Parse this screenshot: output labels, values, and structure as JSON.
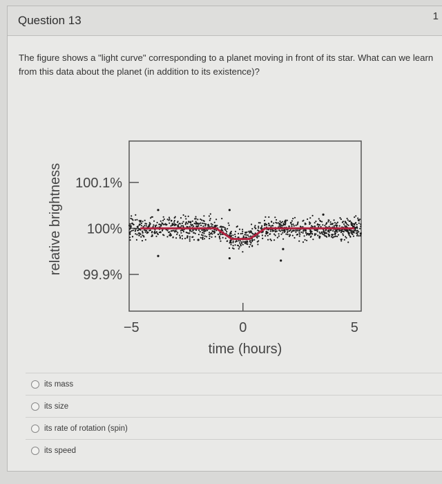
{
  "question": {
    "title": "Question 13",
    "points": "1",
    "text": "The figure shows a \"light curve\" corresponding to a planet moving in front of its star. What can we learn from this data about the planet (in addition to its existence)?"
  },
  "options": [
    {
      "label": "its mass",
      "selected": false
    },
    {
      "label": "its size",
      "selected": false
    },
    {
      "label": "its rate of rotation (spin)",
      "selected": false
    },
    {
      "label": "its speed",
      "selected": false
    }
  ],
  "chart_data": {
    "type": "line",
    "xlabel": "time (hours)",
    "ylabel": "relative brightness",
    "xlim": [
      -5.1,
      5.3
    ],
    "ylim": [
      99.82,
      100.19
    ],
    "x_ticks": [
      {
        "value": -5,
        "label": "−5"
      },
      {
        "value": 0,
        "label": "0"
      },
      {
        "value": 5,
        "label": "5"
      }
    ],
    "y_ticks": [
      {
        "value": 100.1,
        "label": "100.1%"
      },
      {
        "value": 100.0,
        "label": "100%"
      },
      {
        "value": 99.9,
        "label": "99.9%"
      }
    ],
    "grid": false,
    "series": [
      {
        "style": "model-curve",
        "color": "#b0223f",
        "x": [
          -4.6,
          -1.2,
          -0.5,
          0.3,
          1.0,
          5.0
        ],
        "y": [
          100.0,
          100.0,
          99.977,
          99.977,
          100.0,
          100.0
        ]
      },
      {
        "style": "scatter-observations",
        "color": "#1a1a1a",
        "note_scatter_spread": 0.012
      }
    ]
  },
  "colors": {
    "model": "#b0223f",
    "points": "#1a1a1a",
    "axis": "#555555"
  }
}
